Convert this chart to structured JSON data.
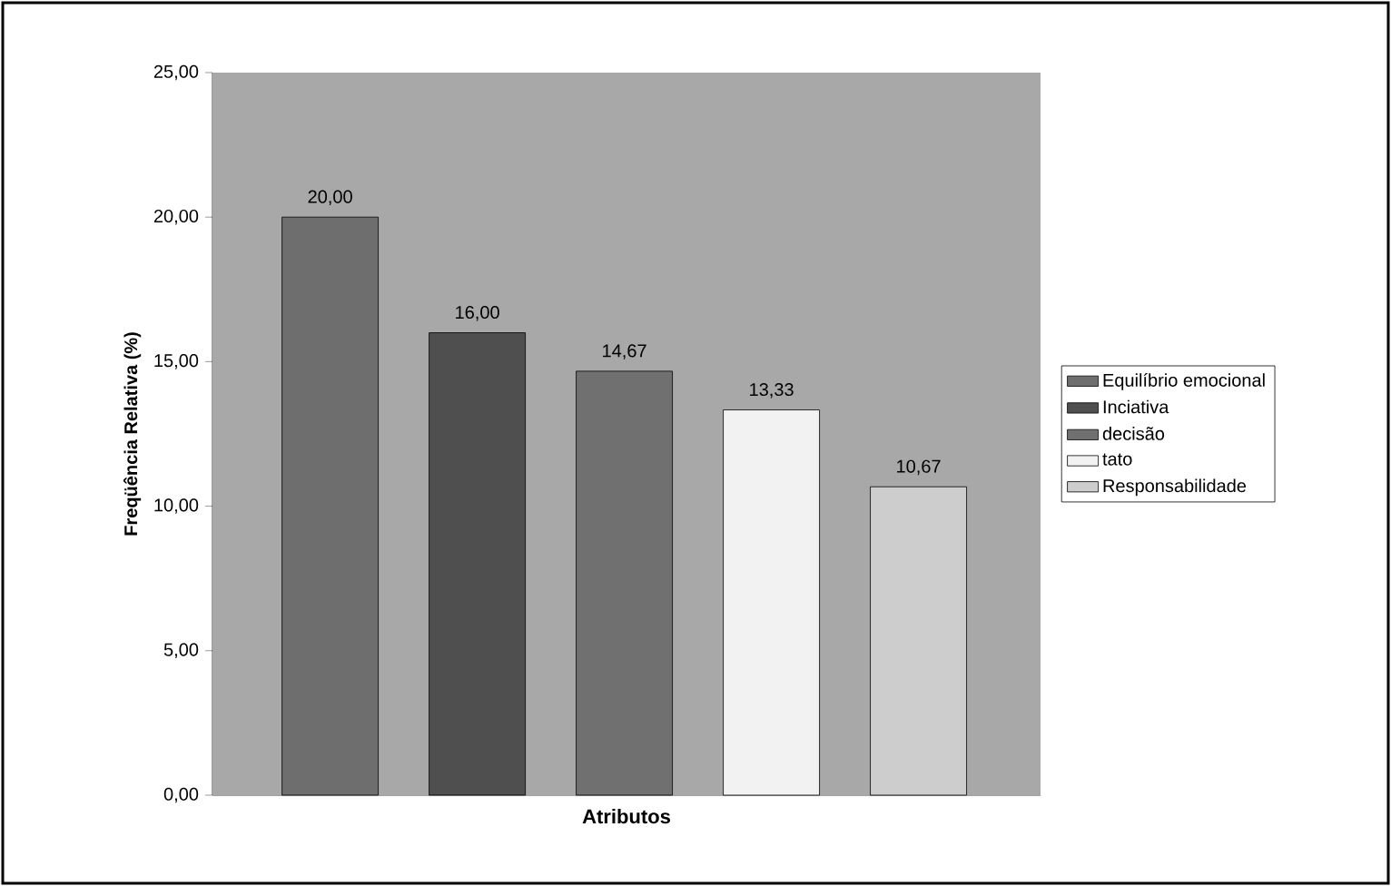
{
  "chart_data": {
    "type": "bar",
    "xlabel": "Atributos",
    "ylabel": "Freqüência Relativa (%)",
    "categories": [
      null,
      null,
      null,
      null,
      null
    ],
    "series": [
      {
        "name": "Equilíbrio emocional",
        "color": "#6e6e6e",
        "values": [
          20,
          null,
          null,
          null,
          null
        ],
        "value_labels": [
          "20,00",
          null,
          null,
          null,
          null
        ]
      },
      {
        "name": "Inciativa",
        "color": "#4f4f4f",
        "values": [
          null,
          16,
          null,
          null,
          null
        ],
        "value_labels": [
          null,
          "16,00",
          null,
          null,
          null
        ]
      },
      {
        "name": "decisão",
        "color": "#707070",
        "values": [
          null,
          null,
          14.67,
          null,
          null
        ],
        "value_labels": [
          null,
          null,
          "14,67",
          null,
          null
        ]
      },
      {
        "name": "tato",
        "color": "#f2f2f2",
        "values": [
          null,
          null,
          null,
          13.33,
          null
        ],
        "value_labels": [
          null,
          null,
          null,
          "13,33",
          null
        ]
      },
      {
        "name": "Responsabilidade",
        "color": "#cdcdcd",
        "values": [
          null,
          null,
          null,
          null,
          10.67
        ],
        "value_labels": [
          null,
          null,
          null,
          null,
          "10,67"
        ]
      }
    ],
    "ylim": [
      0,
      25
    ],
    "yticks": [
      {
        "value": 0,
        "label": "0,00"
      },
      {
        "value": 5,
        "label": "5,00"
      },
      {
        "value": 10,
        "label": "10,00"
      },
      {
        "value": 15,
        "label": "15,00"
      },
      {
        "value": 20,
        "label": "20,00"
      },
      {
        "value": 25,
        "label": "25,00"
      }
    ],
    "grid": false,
    "legend": "right"
  }
}
